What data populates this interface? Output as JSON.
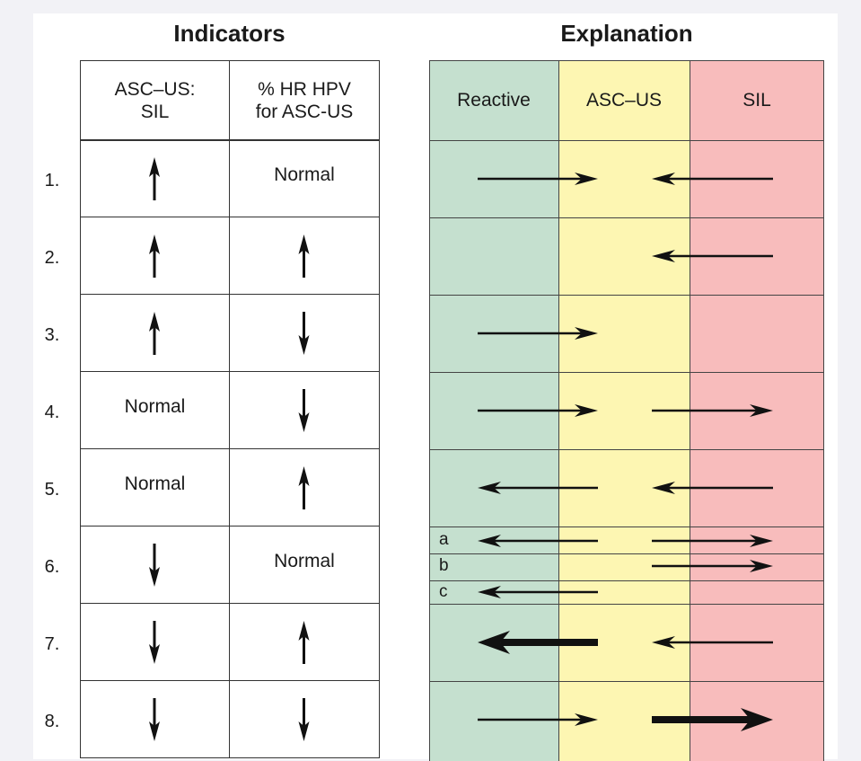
{
  "indicators": {
    "title": "Indicators",
    "columns": [
      "ASC–US:\nSIL",
      "% HR HPV\nfor ASC-US"
    ],
    "rows": [
      {
        "label": "1.",
        "ratio": "up",
        "hpv": "Normal"
      },
      {
        "label": "2.",
        "ratio": "up",
        "hpv": "up"
      },
      {
        "label": "3.",
        "ratio": "up",
        "hpv": "down"
      },
      {
        "label": "4.",
        "ratio": "Normal",
        "hpv": "down"
      },
      {
        "label": "5.",
        "ratio": "Normal",
        "hpv": "up"
      },
      {
        "label": "6.",
        "ratio": "down",
        "hpv": "Normal"
      },
      {
        "label": "7.",
        "ratio": "down",
        "hpv": "up"
      },
      {
        "label": "8.",
        "ratio": "down",
        "hpv": "down"
      }
    ]
  },
  "explanation": {
    "title": "Explanation",
    "zones": [
      {
        "label": "Reactive",
        "color": "#c5e0cf"
      },
      {
        "label": "ASC–US",
        "color": "#fdf6b2"
      },
      {
        "label": "SIL",
        "color": "#f8bcbc"
      }
    ],
    "sub_labels": [
      "a",
      "b",
      "c"
    ],
    "rows": [
      {
        "row": 1,
        "arrows": [
          {
            "from": "Reactive",
            "to": "ASC-US"
          },
          {
            "from": "SIL",
            "to": "ASC-US"
          }
        ]
      },
      {
        "row": 2,
        "arrows": [
          {
            "from": "SIL",
            "to": "ASC-US"
          }
        ]
      },
      {
        "row": 3,
        "arrows": [
          {
            "from": "Reactive",
            "to": "ASC-US"
          }
        ]
      },
      {
        "row": 4,
        "arrows": [
          {
            "from": "Reactive",
            "to": "ASC-US"
          },
          {
            "from": "ASC-US",
            "to": "SIL"
          }
        ]
      },
      {
        "row": 5,
        "arrows": [
          {
            "from": "ASC-US",
            "to": "Reactive"
          },
          {
            "from": "SIL",
            "to": "ASC-US"
          }
        ]
      },
      {
        "row": "6a",
        "arrows": [
          {
            "from": "ASC-US",
            "to": "Reactive"
          },
          {
            "from": "ASC-US",
            "to": "SIL"
          }
        ]
      },
      {
        "row": "6b",
        "arrows": [
          {
            "from": "ASC-US",
            "to": "SIL"
          }
        ]
      },
      {
        "row": "6c",
        "arrows": [
          {
            "from": "ASC-US",
            "to": "Reactive"
          }
        ]
      },
      {
        "row": 7,
        "arrows": [
          {
            "from": "ASC-US",
            "to": "Reactive",
            "bold": true
          },
          {
            "from": "SIL",
            "to": "ASC-US"
          }
        ]
      },
      {
        "row": 8,
        "arrows": [
          {
            "from": "Reactive",
            "to": "ASC-US"
          },
          {
            "from": "ASC-US",
            "to": "SIL",
            "bold": true
          }
        ]
      }
    ]
  }
}
